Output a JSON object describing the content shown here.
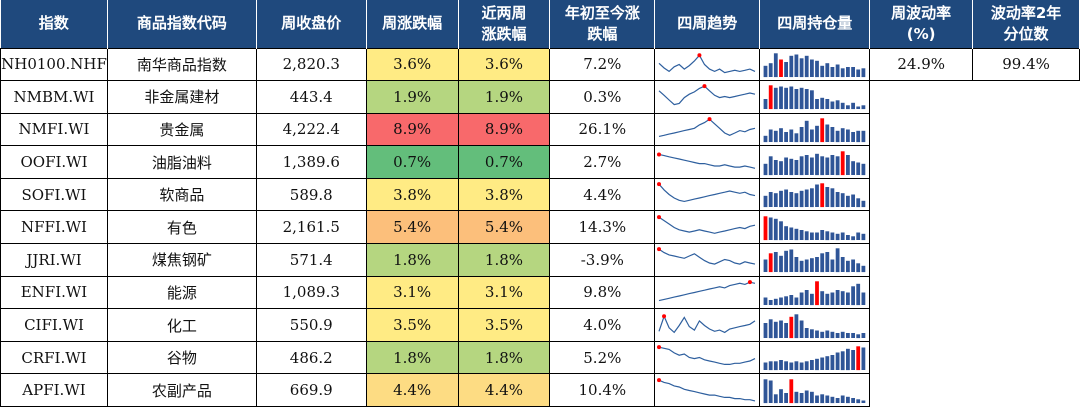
{
  "headers": [
    "指数",
    "商品指数代码",
    "周收盘价",
    "周涨跌幅",
    "近两周涨跌幅",
    "年初至今涨跌幅",
    "四周趋势",
    "四周持仓量",
    "周波动率(%)",
    "波动率2年分位数"
  ],
  "header_lines": [
    [
      "指数"
    ],
    [
      "商品指数代码"
    ],
    [
      "周收盘价"
    ],
    [
      "周涨跌幅"
    ],
    [
      "近两周",
      "涨跌幅"
    ],
    [
      "年初至今涨",
      "跌幅"
    ],
    [
      "四周趋势"
    ],
    [
      "四周持仓量"
    ],
    [
      "周波动率",
      "(%)"
    ],
    [
      "波动率2年",
      "分位数"
    ]
  ],
  "colors": {
    "header_bg": "#1f497d",
    "line": "#2e5f9e",
    "bar": "#2f5597",
    "bar_highlight": "#ff0000",
    "marker": "#ff0000"
  },
  "rows": [
    {
      "code": "NH0100.NHF",
      "name": "南华商品指数",
      "close": "2,820.3",
      "week": "3.6%",
      "week_color": "#ffeb84",
      "two_week": "3.6%",
      "two_week_color": "#ffeb84",
      "ytd": "7.2%",
      "vol": "24.9%",
      "vol_pct": "99.4%",
      "trend": [
        0.55,
        0.35,
        0.2,
        0.4,
        0.5,
        0.3,
        0.45,
        0.65,
        0.9,
        0.5,
        0.3,
        0.2,
        0.3,
        0.15,
        0.2,
        0.25,
        0.2,
        0.25,
        0.3,
        0.2
      ],
      "oi": [
        0.45,
        0.55,
        0.95,
        0.7,
        0.6,
        0.85,
        0.9,
        0.75,
        0.85,
        0.7,
        0.65,
        0.45,
        0.55,
        0.4,
        0.5,
        0.35,
        0.4,
        0.4,
        0.3,
        0.35
      ],
      "oi_hi": 3
    },
    {
      "code": "NMBM.WI",
      "name": "非金属建材",
      "close": "443.4",
      "week": "1.9%",
      "week_color": "#b5d680",
      "two_week": "1.9%",
      "two_week_color": "#b5d680",
      "ytd": "0.3%",
      "trend": [
        0.75,
        0.55,
        0.35,
        0.15,
        0.2,
        0.45,
        0.6,
        0.7,
        0.85,
        0.95,
        0.75,
        0.55,
        0.45,
        0.5,
        0.45,
        0.5,
        0.55,
        0.6,
        0.65,
        0.6
      ],
      "oi": [
        0.4,
        0.95,
        0.85,
        0.9,
        0.85,
        0.9,
        0.8,
        0.85,
        0.8,
        0.75,
        0.4,
        0.45,
        0.4,
        0.3,
        0.35,
        0.25,
        0.15,
        0.25,
        0.1,
        0.15
      ],
      "oi_hi": 1
    },
    {
      "code": "NMFI.WI",
      "name": "贵金属",
      "close": "4,222.4",
      "week": "8.9%",
      "week_color": "#f8696b",
      "two_week": "8.9%",
      "two_week_color": "#f8696b",
      "ytd": "26.1%",
      "trend": [
        0.2,
        0.25,
        0.3,
        0.35,
        0.4,
        0.45,
        0.5,
        0.55,
        0.7,
        0.8,
        0.95,
        0.75,
        0.55,
        0.35,
        0.25,
        0.35,
        0.45,
        0.4,
        0.5,
        0.55
      ],
      "oi": [
        0.25,
        0.5,
        0.45,
        0.55,
        0.4,
        0.5,
        0.35,
        0.6,
        0.85,
        0.5,
        0.65,
        0.95,
        0.7,
        0.6,
        0.45,
        0.55,
        0.5,
        0.4,
        0.45,
        0.45
      ],
      "oi_hi": 11
    },
    {
      "code": "OOFI.WI",
      "name": "油脂油料",
      "close": "1,389.6",
      "week": "0.7%",
      "week_color": "#63be7b",
      "two_week": "0.7%",
      "two_week_color": "#63be7b",
      "ytd": "2.7%",
      "trend": [
        0.85,
        0.8,
        0.75,
        0.7,
        0.65,
        0.6,
        0.55,
        0.5,
        0.45,
        0.45,
        0.4,
        0.35,
        0.35,
        0.4,
        0.35,
        0.3,
        0.3,
        0.35,
        0.3,
        0.25
      ],
      "oi": [
        0.45,
        0.75,
        0.6,
        0.55,
        0.7,
        0.65,
        0.6,
        0.75,
        0.8,
        0.7,
        0.85,
        0.75,
        0.7,
        0.8,
        0.75,
        0.95,
        0.8,
        0.55,
        0.5,
        0.45
      ],
      "oi_hi": 15
    },
    {
      "code": "SOFI.WI",
      "name": "软商品",
      "close": "589.8",
      "week": "3.8%",
      "week_color": "#ffeb84",
      "two_week": "3.8%",
      "two_week_color": "#ffeb84",
      "ytd": "4.4%",
      "trend": [
        0.95,
        0.7,
        0.5,
        0.35,
        0.25,
        0.2,
        0.25,
        0.3,
        0.35,
        0.4,
        0.45,
        0.5,
        0.55,
        0.6,
        0.65,
        0.6,
        0.55,
        0.6,
        0.5,
        0.45
      ],
      "oi": [
        0.45,
        0.6,
        0.55,
        0.65,
        0.7,
        0.6,
        0.55,
        0.65,
        0.7,
        0.75,
        0.9,
        0.95,
        0.8,
        0.75,
        0.6,
        0.55,
        0.45,
        0.5,
        0.35,
        0.25
      ],
      "oi_hi": 11
    },
    {
      "code": "NFFI.WI",
      "name": "有色",
      "close": "2,161.5",
      "week": "5.4%",
      "week_color": "#fcbf7b",
      "two_week": "5.4%",
      "two_week_color": "#fcbf7b",
      "ytd": "14.3%",
      "trend": [
        0.95,
        0.8,
        0.65,
        0.5,
        0.4,
        0.35,
        0.3,
        0.35,
        0.4,
        0.35,
        0.3,
        0.25,
        0.3,
        0.35,
        0.4,
        0.45,
        0.5,
        0.45,
        0.55,
        0.6
      ],
      "oi": [
        0.95,
        0.9,
        0.85,
        0.75,
        0.55,
        0.5,
        0.45,
        0.4,
        0.35,
        0.3,
        0.3,
        0.4,
        0.35,
        0.3,
        0.25,
        0.3,
        0.2,
        0.15,
        0.3,
        0.25
      ],
      "oi_hi": 0
    },
    {
      "code": "JJRI.WI",
      "name": "煤焦钢矿",
      "close": "571.4",
      "week": "1.8%",
      "week_color": "#b5d680",
      "two_week": "1.8%",
      "two_week_color": "#b5d680",
      "ytd": "-3.9%",
      "trend": [
        0.95,
        0.8,
        0.7,
        0.65,
        0.6,
        0.55,
        0.65,
        0.75,
        0.6,
        0.45,
        0.35,
        0.3,
        0.4,
        0.5,
        0.45,
        0.35,
        0.3,
        0.4,
        0.35,
        0.3
      ],
      "oi": [
        0.5,
        0.75,
        0.8,
        0.65,
        0.85,
        0.9,
        0.6,
        0.45,
        0.5,
        0.55,
        0.6,
        0.75,
        0.8,
        0.5,
        0.95,
        0.6,
        0.45,
        0.5,
        0.35,
        0.25
      ],
      "oi_hi": 1
    },
    {
      "code": "ENFI.WI",
      "name": "能源",
      "close": "1,089.3",
      "week": "3.1%",
      "week_color": "#ffeb84",
      "two_week": "3.1%",
      "two_week_color": "#ffeb84",
      "ytd": "9.8%",
      "trend": [
        0.15,
        0.2,
        0.25,
        0.3,
        0.35,
        0.4,
        0.45,
        0.5,
        0.55,
        0.6,
        0.65,
        0.7,
        0.75,
        0.7,
        0.8,
        0.85,
        0.9,
        0.85,
        0.95,
        0.9
      ],
      "oi": [
        0.3,
        0.2,
        0.25,
        0.3,
        0.35,
        0.4,
        0.3,
        0.5,
        0.6,
        0.45,
        0.95,
        0.55,
        0.45,
        0.5,
        0.6,
        0.55,
        0.5,
        0.75,
        0.85,
        0.5
      ],
      "oi_hi": 10
    },
    {
      "code": "CIFI.WI",
      "name": "化工",
      "close": "550.9",
      "week": "3.5%",
      "week_color": "#ffeb84",
      "two_week": "3.5%",
      "two_week_color": "#ffeb84",
      "ytd": "4.0%",
      "trend": [
        0.25,
        0.9,
        0.4,
        0.2,
        0.5,
        0.85,
        0.45,
        0.3,
        0.7,
        0.5,
        0.35,
        0.25,
        0.3,
        0.2,
        0.35,
        0.4,
        0.45,
        0.5,
        0.55,
        0.7
      ],
      "oi": [
        0.6,
        0.75,
        0.65,
        0.7,
        0.6,
        0.85,
        0.95,
        0.7,
        0.4,
        0.35,
        0.3,
        0.25,
        0.3,
        0.25,
        0.2,
        0.25,
        0.2,
        0.2,
        0.15,
        0.2
      ],
      "oi_hi": 5
    },
    {
      "code": "CRFI.WI",
      "name": "谷物",
      "close": "486.2",
      "week": "1.8%",
      "week_color": "#b5d680",
      "two_week": "1.8%",
      "two_week_color": "#b5d680",
      "ytd": "5.2%",
      "trend": [
        0.95,
        0.9,
        0.85,
        0.7,
        0.6,
        0.65,
        0.5,
        0.45,
        0.5,
        0.4,
        0.35,
        0.3,
        0.25,
        0.2,
        0.2,
        0.25,
        0.25,
        0.3,
        0.35,
        0.45
      ],
      "oi": [
        0.3,
        0.35,
        0.35,
        0.4,
        0.35,
        0.3,
        0.35,
        0.3,
        0.35,
        0.4,
        0.45,
        0.5,
        0.55,
        0.6,
        0.7,
        0.75,
        0.85,
        0.8,
        0.95,
        0.9
      ],
      "oi_hi": 18
    },
    {
      "code": "APFI.WI",
      "name": "农副产品",
      "close": "669.9",
      "week": "4.4%",
      "week_color": "#fddc83",
      "two_week": "4.4%",
      "two_week_color": "#fddc83",
      "ytd": "10.4%",
      "trend": [
        0.95,
        0.85,
        0.8,
        0.7,
        0.65,
        0.55,
        0.5,
        0.45,
        0.4,
        0.35,
        0.3,
        0.3,
        0.25,
        0.2,
        0.2,
        0.15,
        0.15,
        0.1,
        0.1,
        0.05
      ],
      "oi": [
        0.95,
        0.9,
        0.35,
        0.55,
        0.4,
        0.95,
        0.45,
        0.4,
        0.5,
        0.45,
        0.3,
        0.35,
        0.3,
        0.25,
        0.2,
        0.3,
        0.25,
        0.2,
        0.15,
        0.1
      ],
      "oi_hi": 5
    }
  ]
}
